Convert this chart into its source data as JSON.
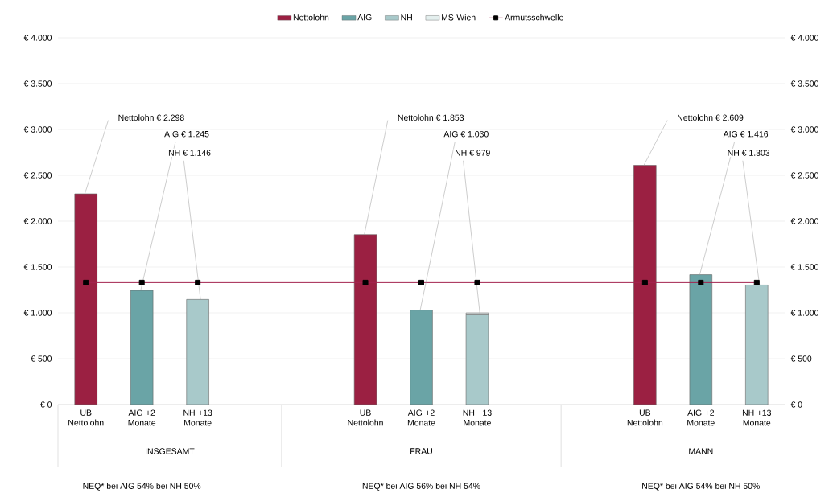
{
  "chart_data": {
    "type": "bar",
    "stacked": true,
    "grid": "y",
    "legend": "top",
    "categories": [
      "UB Nettolohn",
      "AIG +2 Monate",
      "NH +13 Monate",
      null,
      null,
      "UB Nettolohn",
      "AIG +2 Monate",
      "NH +13 Monate",
      null,
      null,
      "UB Nettolohn",
      "AIG +2 Monate",
      "NH +13 Monate"
    ],
    "series": [
      {
        "name": "Nettolohn",
        "color": "#9b2042",
        "values": [
          2298,
          null,
          null,
          null,
          null,
          1853,
          null,
          null,
          null,
          null,
          2609,
          null,
          null
        ],
        "value_labels": [
          "Nettolohn € 2.298",
          null,
          null,
          null,
          null,
          "Nettolohn € 1.853",
          null,
          null,
          null,
          null,
          "Nettolohn € 2.609",
          null,
          null
        ]
      },
      {
        "name": "AIG",
        "color": "#6aa4a6",
        "values": [
          null,
          1245,
          null,
          null,
          null,
          null,
          1030,
          null,
          null,
          null,
          null,
          1416,
          null
        ],
        "value_labels": [
          null,
          "AIG € 1.245",
          null,
          null,
          null,
          null,
          "AIG € 1.030",
          null,
          null,
          null,
          null,
          "AIG € 1.416",
          null
        ]
      },
      {
        "name": "NH",
        "color": "#a8c9ca",
        "values": [
          null,
          null,
          1146,
          null,
          null,
          null,
          null,
          979,
          null,
          null,
          null,
          null,
          1303
        ],
        "value_labels": [
          null,
          null,
          "NH € 1.146",
          null,
          null,
          null,
          null,
          "NH € 979",
          null,
          null,
          null,
          null,
          "NH € 1.303"
        ]
      },
      {
        "name": "MS-Wien",
        "color": "#e4efee",
        "values": [
          null,
          null,
          null,
          null,
          null,
          null,
          null,
          20,
          null,
          null,
          null,
          null,
          null
        ]
      },
      {
        "name": "Armutsschwelle",
        "type": "line",
        "color": "#a3244f",
        "marker": "square",
        "line_style": "solid",
        "values": [
          1330,
          1330,
          1330,
          null,
          null,
          1330,
          1330,
          1330,
          null,
          null,
          1330,
          1330,
          1330
        ]
      }
    ],
    "ylim": [
      0,
      4000
    ],
    "yticks": [
      {
        "value": 0,
        "label": "€ 0"
      },
      {
        "value": 500,
        "label": "€ 500"
      },
      {
        "value": 1000,
        "label": "€ 1.000"
      },
      {
        "value": 1500,
        "label": "€ 1.500"
      },
      {
        "value": 2000,
        "label": "€ 2.000"
      },
      {
        "value": 2500,
        "label": "€ 2.500"
      },
      {
        "value": 3000,
        "label": "€ 3.000"
      },
      {
        "value": 3500,
        "label": "€ 3.500"
      },
      {
        "value": 4000,
        "label": "€ 4.000"
      }
    ],
    "y2lim": [
      0,
      4000
    ],
    "y2ticks": [
      {
        "value": 0,
        "label": "€ 0"
      },
      {
        "value": 500,
        "label": "€ 500"
      },
      {
        "value": 1000,
        "label": "€ 1.000"
      },
      {
        "value": 1500,
        "label": "€ 1.500"
      },
      {
        "value": 2000,
        "label": "€ 2.000"
      },
      {
        "value": 2500,
        "label": "€ 2.500"
      },
      {
        "value": 3000,
        "label": "€ 3.000"
      },
      {
        "value": 3500,
        "label": "€ 3.500"
      },
      {
        "value": 4000,
        "label": "€ 4.000"
      }
    ],
    "annotations": [
      "INSGESAMT",
      "FRAU",
      "MANN",
      "NEQ* bei AIG 54%   bei NH 50%",
      "NEQ* bei AIG 56%   bei NH 54%",
      "NEQ* bei AIG 54%   bei NH 50%"
    ]
  }
}
